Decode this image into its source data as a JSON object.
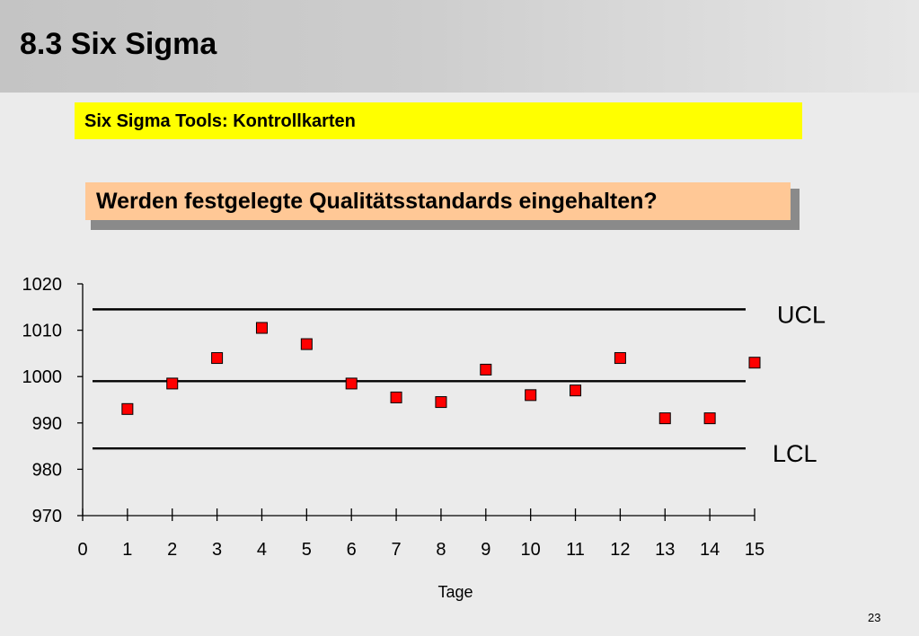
{
  "slide": {
    "title": "8.3 Six Sigma",
    "banner": "Six Sigma Tools: Kontrollkarten",
    "question": "Werden festgelegte Qualitätsstandards eingehalten?",
    "page_number": "23"
  },
  "colors": {
    "banner": "#ffff00",
    "question_box": "#ffc896",
    "marker": "#ff0000"
  },
  "chart_data": {
    "type": "scatter",
    "xlabel": "Tage",
    "ylabel": "",
    "xlim": [
      0,
      15
    ],
    "ylim": [
      970,
      1020
    ],
    "x_ticks": [
      "0",
      "1",
      "2",
      "3",
      "4",
      "5",
      "6",
      "7",
      "8",
      "9",
      "10",
      "11",
      "12",
      "13",
      "14",
      "15"
    ],
    "y_ticks": [
      "1020",
      "1010",
      "1000",
      "990",
      "980",
      "970"
    ],
    "series": [
      {
        "x": [
          1,
          2,
          3,
          4,
          5,
          6,
          7,
          8,
          9,
          10,
          11,
          12,
          13,
          14,
          15
        ],
        "y": [
          993,
          998.5,
          1004,
          1010.5,
          1007,
          998.5,
          995.5,
          994.5,
          1001.5,
          996,
          997,
          1004,
          991,
          991,
          1003
        ]
      }
    ],
    "control_lines": [
      {
        "label": "UCL",
        "value": 1014.5
      },
      {
        "label": "",
        "value": 999
      },
      {
        "label": "LCL",
        "value": 984.5
      }
    ]
  }
}
